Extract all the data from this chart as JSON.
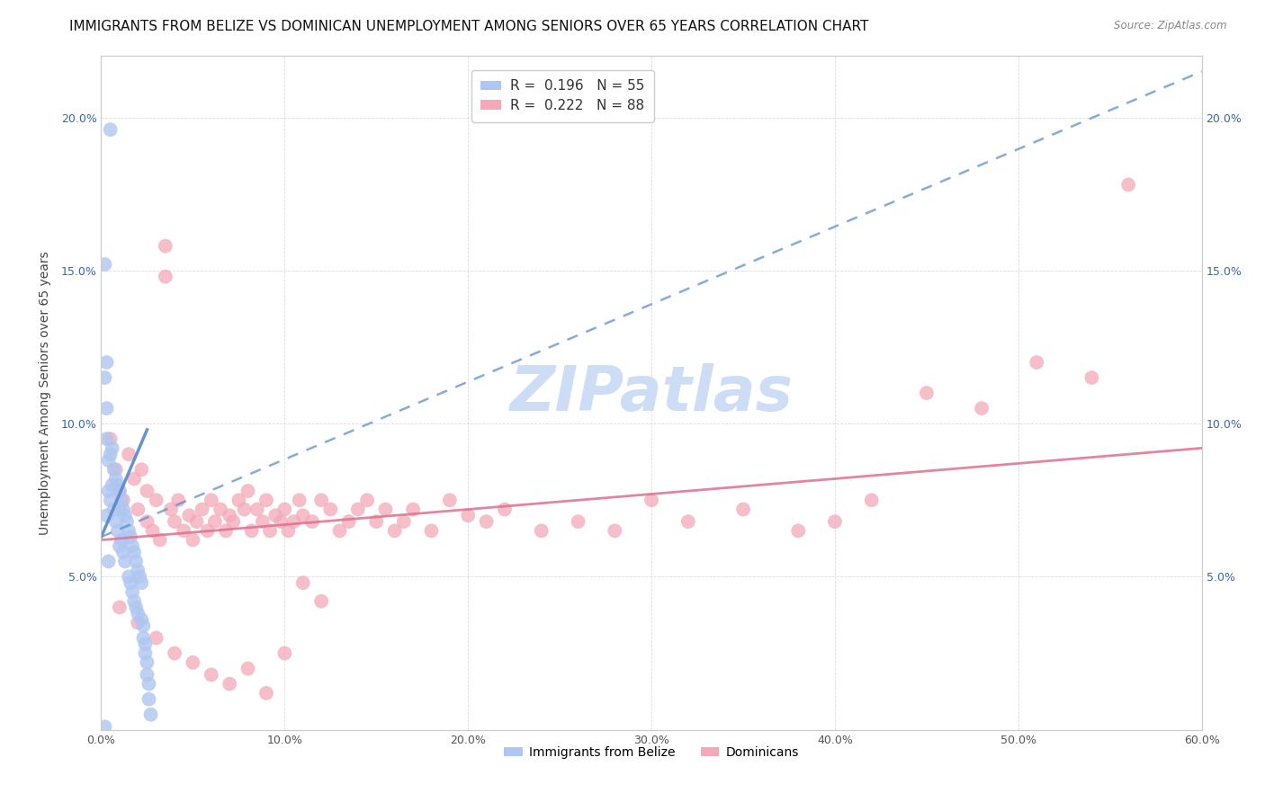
{
  "title": "IMMIGRANTS FROM BELIZE VS DOMINICAN UNEMPLOYMENT AMONG SENIORS OVER 65 YEARS CORRELATION CHART",
  "source": "Source: ZipAtlas.com",
  "ylabel": "Unemployment Among Seniors over 65 years",
  "xlim": [
    0.0,
    0.6
  ],
  "ylim": [
    0.0,
    0.22
  ],
  "xtick_vals": [
    0.0,
    0.1,
    0.2,
    0.3,
    0.4,
    0.5,
    0.6
  ],
  "xticklabels": [
    "0.0%",
    "10.0%",
    "20.0%",
    "30.0%",
    "40.0%",
    "50.0%",
    "60.0%"
  ],
  "ytick_vals": [
    0.0,
    0.05,
    0.1,
    0.15,
    0.2
  ],
  "yticklabels_left": [
    "",
    "5.0%",
    "10.0%",
    "15.0%",
    "20.0%"
  ],
  "yticklabels_right": [
    "",
    "5.0%",
    "10.0%",
    "15.0%",
    "20.0%"
  ],
  "series1_label": "Immigrants from Belize",
  "series1_color": "#aec6f0",
  "series1_trend_color": "#5588cc",
  "series1_R": 0.196,
  "series1_N": 55,
  "series2_label": "Dominicans",
  "series2_color": "#f4a8b8",
  "series2_trend_color": "#e07090",
  "series2_R": 0.222,
  "series2_N": 88,
  "legend1_text": "R =  0.196   N = 55",
  "legend2_text": "R =  0.222   N = 88",
  "watermark": "ZIPatlas",
  "watermark_color": "#ccddf5",
  "background_color": "#ffffff",
  "title_fontsize": 11,
  "axis_label_fontsize": 10,
  "tick_fontsize": 9,
  "legend_fontsize": 11,
  "blue_trendline_x": [
    0.0,
    0.6
  ],
  "blue_trendline_y": [
    0.063,
    0.215
  ],
  "pink_trendline_x": [
    0.0,
    0.6
  ],
  "pink_trendline_y": [
    0.062,
    0.092
  ],
  "belize_x": [
    0.005,
    0.002,
    0.002,
    0.002,
    0.003,
    0.003,
    0.003,
    0.003,
    0.004,
    0.004,
    0.004,
    0.005,
    0.005,
    0.006,
    0.006,
    0.007,
    0.007,
    0.008,
    0.008,
    0.009,
    0.009,
    0.01,
    0.01,
    0.01,
    0.011,
    0.011,
    0.012,
    0.012,
    0.013,
    0.013,
    0.014,
    0.015,
    0.015,
    0.016,
    0.016,
    0.017,
    0.017,
    0.018,
    0.018,
    0.019,
    0.019,
    0.02,
    0.02,
    0.021,
    0.022,
    0.022,
    0.023,
    0.023,
    0.024,
    0.024,
    0.025,
    0.025,
    0.026,
    0.026,
    0.027
  ],
  "belize_y": [
    0.196,
    0.152,
    0.115,
    0.001,
    0.12,
    0.105,
    0.095,
    0.07,
    0.088,
    0.078,
    0.055,
    0.09,
    0.075,
    0.092,
    0.08,
    0.085,
    0.072,
    0.082,
    0.068,
    0.08,
    0.065,
    0.078,
    0.072,
    0.06,
    0.075,
    0.062,
    0.072,
    0.058,
    0.07,
    0.055,
    0.068,
    0.065,
    0.05,
    0.063,
    0.048,
    0.06,
    0.045,
    0.058,
    0.042,
    0.055,
    0.04,
    0.052,
    0.038,
    0.05,
    0.036,
    0.048,
    0.034,
    0.03,
    0.028,
    0.025,
    0.022,
    0.018,
    0.015,
    0.01,
    0.005
  ],
  "dominican_x": [
    0.005,
    0.008,
    0.01,
    0.012,
    0.015,
    0.018,
    0.02,
    0.022,
    0.025,
    0.025,
    0.028,
    0.03,
    0.032,
    0.035,
    0.035,
    0.038,
    0.04,
    0.042,
    0.045,
    0.048,
    0.05,
    0.052,
    0.055,
    0.058,
    0.06,
    0.062,
    0.065,
    0.068,
    0.07,
    0.072,
    0.075,
    0.078,
    0.08,
    0.082,
    0.085,
    0.088,
    0.09,
    0.092,
    0.095,
    0.098,
    0.1,
    0.102,
    0.105,
    0.108,
    0.11,
    0.115,
    0.12,
    0.125,
    0.13,
    0.135,
    0.14,
    0.145,
    0.15,
    0.155,
    0.16,
    0.165,
    0.17,
    0.18,
    0.19,
    0.2,
    0.21,
    0.22,
    0.24,
    0.26,
    0.28,
    0.3,
    0.32,
    0.35,
    0.38,
    0.4,
    0.42,
    0.45,
    0.48,
    0.51,
    0.54,
    0.56,
    0.01,
    0.02,
    0.03,
    0.04,
    0.05,
    0.06,
    0.07,
    0.08,
    0.09,
    0.1,
    0.11,
    0.12
  ],
  "dominican_y": [
    0.095,
    0.085,
    0.078,
    0.075,
    0.09,
    0.082,
    0.072,
    0.085,
    0.078,
    0.068,
    0.065,
    0.075,
    0.062,
    0.158,
    0.148,
    0.072,
    0.068,
    0.075,
    0.065,
    0.07,
    0.062,
    0.068,
    0.072,
    0.065,
    0.075,
    0.068,
    0.072,
    0.065,
    0.07,
    0.068,
    0.075,
    0.072,
    0.078,
    0.065,
    0.072,
    0.068,
    0.075,
    0.065,
    0.07,
    0.068,
    0.072,
    0.065,
    0.068,
    0.075,
    0.07,
    0.068,
    0.075,
    0.072,
    0.065,
    0.068,
    0.072,
    0.075,
    0.068,
    0.072,
    0.065,
    0.068,
    0.072,
    0.065,
    0.075,
    0.07,
    0.068,
    0.072,
    0.065,
    0.068,
    0.065,
    0.075,
    0.068,
    0.072,
    0.065,
    0.068,
    0.075,
    0.11,
    0.105,
    0.12,
    0.115,
    0.178,
    0.04,
    0.035,
    0.03,
    0.025,
    0.022,
    0.018,
    0.015,
    0.02,
    0.012,
    0.025,
    0.048,
    0.042
  ]
}
